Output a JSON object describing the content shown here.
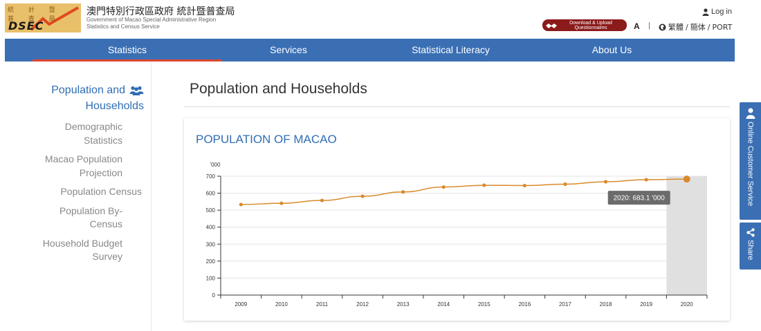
{
  "header": {
    "logo_chars": "統 計 暨 普 查 局",
    "logo_text": "DSEC",
    "org_zh": "澳門特別行政區政府 統計暨普查局",
    "org_en_line1": "Government of Macao Special Administrative Region",
    "org_en_line2": "Statistics and Census Service",
    "login_label": "Log in",
    "download_line1": "Download & Upload",
    "download_line2": "Questionnaires",
    "font_size_label": "A",
    "separator": "|",
    "lang_trad": "繁體",
    "lang_simp": "簡体",
    "lang_port": "PORT",
    "lang_sep": "/"
  },
  "nav": {
    "items": [
      {
        "label": "Statistics",
        "active": true
      },
      {
        "label": "Services",
        "active": false
      },
      {
        "label": "Statistical Literacy",
        "active": false
      },
      {
        "label": "About Us",
        "active": false
      }
    ]
  },
  "sidebar": {
    "heading_line1": "Population and",
    "heading_line2": "Households",
    "items": [
      {
        "line1": "Demographic",
        "line2": "Statistics"
      },
      {
        "line1": "Macao Population",
        "line2": "Projection"
      },
      {
        "line1": "Population Census",
        "line2": ""
      },
      {
        "line1": "Population By-",
        "line2": "Census"
      },
      {
        "line1": "Household Budget",
        "line2": "Survey"
      }
    ]
  },
  "main": {
    "page_title": "Population and Households",
    "card_title": "POPULATION OF MACAO"
  },
  "float_tabs": {
    "customer_service": "Online Customer Service",
    "share": "Share"
  },
  "colors": {
    "brand_blue": "#3a6fb4",
    "line_orange": "#d98a2b",
    "accent_red": "#e0452e",
    "download_red": "#8b1a1a"
  },
  "chart_data": {
    "type": "line",
    "ylabel": "'000",
    "xlabel": "",
    "ylim": [
      0,
      700
    ],
    "yticks": [
      0,
      100,
      200,
      300,
      400,
      500,
      600,
      700
    ],
    "categories": [
      "2009",
      "2010",
      "2011",
      "2012",
      "2013",
      "2014",
      "2015",
      "2016",
      "2017",
      "2018",
      "2019",
      "2020"
    ],
    "series": [
      {
        "values": [
          533.3,
          540.6,
          557.4,
          582.0,
          607.5,
          636.2,
          646.8,
          644.9,
          653.1,
          667.4,
          679.6,
          683.1
        ]
      }
    ],
    "highlight_index": 11,
    "tooltip": "2020: 683.1 '000",
    "grid": true
  }
}
